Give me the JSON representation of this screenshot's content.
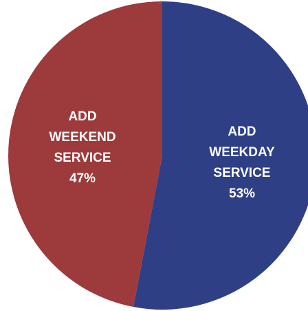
{
  "chart_data": {
    "type": "pie",
    "categories": [
      "ADD\nWEEKDAY\nSERVICE",
      "ADD\nWEEKEND\nSERVICE"
    ],
    "values": [
      53,
      47
    ],
    "value_labels": [
      "53%",
      "47%"
    ],
    "colors": [
      "#2e3f86",
      "#9d3a3b"
    ]
  }
}
